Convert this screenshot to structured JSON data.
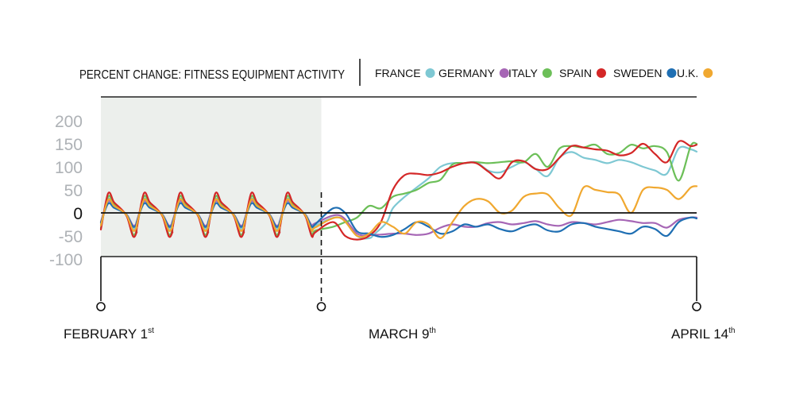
{
  "chart_data": {
    "type": "line",
    "title": "PERCENT CHANGE: FITNESS EQUIPMENT ACTIVITY",
    "ylim": [
      -100,
      200
    ],
    "y_ticks": [
      "200",
      "150",
      "100",
      "50",
      "0",
      "-50",
      "-100"
    ],
    "y_tick_values": [
      200,
      150,
      100,
      50,
      0,
      -50,
      -100
    ],
    "x_start_day": 1,
    "x_end_day": 74,
    "x_markers": [
      {
        "label": "FEBRUARY 1",
        "sup": "st",
        "day": 1
      },
      {
        "label": "MARCH 9",
        "sup": "th",
        "day": 38
      },
      {
        "label": "APRIL 14",
        "sup": "th",
        "day": 74
      }
    ],
    "shaded_range_days": [
      1,
      38
    ],
    "legend_position": "top-right",
    "grid": false,
    "series": [
      {
        "name": "FRANCE",
        "color": "#7ec8d3",
        "phase1": {
          "peak": 30,
          "trough": -40
        },
        "phase2": [
          [
            38,
            20
          ],
          [
            41,
            -10
          ],
          [
            44,
            -50
          ],
          [
            46,
            -55
          ],
          [
            47,
            -45
          ],
          [
            49,
            -20
          ],
          [
            50,
            10
          ],
          [
            52,
            35
          ],
          [
            54,
            55
          ],
          [
            56,
            75
          ],
          [
            58,
            100
          ],
          [
            60,
            108
          ],
          [
            62,
            108
          ],
          [
            64,
            110
          ],
          [
            66,
            92
          ],
          [
            68,
            88
          ],
          [
            70,
            100
          ],
          [
            72,
            110
          ],
          [
            74,
            95
          ],
          [
            76,
            80
          ],
          [
            78,
            120
          ],
          [
            80,
            132
          ],
          [
            82,
            120
          ],
          [
            84,
            115
          ],
          [
            86,
            108
          ],
          [
            88,
            115
          ],
          [
            90,
            110
          ],
          [
            92,
            100
          ],
          [
            94,
            92
          ],
          [
            96,
            85
          ],
          [
            98,
            140
          ],
          [
            100,
            138
          ],
          [
            101,
            133
          ]
        ]
      },
      {
        "name": "GERMANY",
        "color": "#a666b5",
        "phase1": {
          "peak": 25,
          "trough": -32
        },
        "phase2": [
          [
            38,
            10
          ],
          [
            41,
            -5
          ],
          [
            44,
            -45
          ],
          [
            46,
            -48
          ],
          [
            48,
            -47
          ],
          [
            50,
            -45
          ],
          [
            52,
            -45
          ],
          [
            54,
            -48
          ],
          [
            56,
            -45
          ],
          [
            58,
            -32
          ],
          [
            60,
            -25
          ],
          [
            62,
            -30
          ],
          [
            64,
            -30
          ],
          [
            66,
            -22
          ],
          [
            68,
            -20
          ],
          [
            70,
            -25
          ],
          [
            72,
            -22
          ],
          [
            74,
            -18
          ],
          [
            76,
            -25
          ],
          [
            78,
            -28
          ],
          [
            80,
            -20
          ],
          [
            82,
            -22
          ],
          [
            84,
            -25
          ],
          [
            86,
            -20
          ],
          [
            88,
            -15
          ],
          [
            90,
            -18
          ],
          [
            92,
            -22
          ],
          [
            94,
            -22
          ],
          [
            96,
            -32
          ],
          [
            98,
            -15
          ],
          [
            100,
            -10
          ],
          [
            101,
            -10
          ]
        ]
      },
      {
        "name": "ITALY",
        "color": "#6cbf58",
        "phase1": {
          "peak": 35,
          "trough": -55
        },
        "phase2": [
          [
            38,
            35
          ],
          [
            40,
            -30
          ],
          [
            42,
            -20
          ],
          [
            44,
            -10
          ],
          [
            46,
            15
          ],
          [
            48,
            10
          ],
          [
            50,
            35
          ],
          [
            52,
            42
          ],
          [
            54,
            50
          ],
          [
            56,
            65
          ],
          [
            58,
            72
          ],
          [
            60,
            105
          ],
          [
            62,
            108
          ],
          [
            64,
            110
          ],
          [
            66,
            108
          ],
          [
            68,
            110
          ],
          [
            70,
            112
          ],
          [
            72,
            110
          ],
          [
            74,
            128
          ],
          [
            76,
            100
          ],
          [
            78,
            140
          ],
          [
            80,
            145
          ],
          [
            82,
            142
          ],
          [
            84,
            148
          ],
          [
            86,
            128
          ],
          [
            88,
            130
          ],
          [
            90,
            148
          ],
          [
            92,
            140
          ],
          [
            94,
            145
          ],
          [
            96,
            132
          ],
          [
            98,
            70
          ],
          [
            100,
            145
          ],
          [
            101,
            150
          ]
        ]
      },
      {
        "name": "SPAIN",
        "color": "#d42727",
        "phase1": {
          "peak": 42,
          "trough": -60
        },
        "phase2": [
          [
            38,
            30
          ],
          [
            40,
            -20
          ],
          [
            42,
            -50
          ],
          [
            44,
            -58
          ],
          [
            46,
            -50
          ],
          [
            48,
            -20
          ],
          [
            50,
            50
          ],
          [
            52,
            82
          ],
          [
            54,
            85
          ],
          [
            56,
            82
          ],
          [
            58,
            88
          ],
          [
            60,
            100
          ],
          [
            62,
            108
          ],
          [
            64,
            108
          ],
          [
            66,
            90
          ],
          [
            68,
            75
          ],
          [
            70,
            110
          ],
          [
            72,
            112
          ],
          [
            74,
            95
          ],
          [
            76,
            95
          ],
          [
            78,
            120
          ],
          [
            80,
            145
          ],
          [
            82,
            142
          ],
          [
            84,
            138
          ],
          [
            86,
            135
          ],
          [
            88,
            125
          ],
          [
            90,
            130
          ],
          [
            92,
            150
          ],
          [
            94,
            128
          ],
          [
            96,
            110
          ],
          [
            98,
            155
          ],
          [
            100,
            145
          ],
          [
            101,
            148
          ]
        ]
      },
      {
        "name": "SWEDEN",
        "color": "#1f6fb3",
        "phase1": {
          "peak": 20,
          "trough": -35
        },
        "phase2": [
          [
            38,
            15
          ],
          [
            40,
            10
          ],
          [
            42,
            0
          ],
          [
            44,
            -40
          ],
          [
            46,
            -45
          ],
          [
            48,
            -52
          ],
          [
            50,
            -48
          ],
          [
            52,
            -35
          ],
          [
            54,
            -20
          ],
          [
            56,
            -30
          ],
          [
            58,
            -45
          ],
          [
            60,
            -40
          ],
          [
            62,
            -25
          ],
          [
            64,
            -30
          ],
          [
            66,
            -25
          ],
          [
            68,
            -35
          ],
          [
            70,
            -40
          ],
          [
            72,
            -30
          ],
          [
            74,
            -25
          ],
          [
            76,
            -38
          ],
          [
            78,
            -40
          ],
          [
            80,
            -25
          ],
          [
            82,
            -22
          ],
          [
            84,
            -30
          ],
          [
            86,
            -35
          ],
          [
            88,
            -40
          ],
          [
            90,
            -45
          ],
          [
            92,
            -30
          ],
          [
            94,
            -35
          ],
          [
            96,
            -50
          ],
          [
            98,
            -20
          ],
          [
            100,
            -10
          ],
          [
            101,
            -12
          ]
        ]
      },
      {
        "name": "U.K.",
        "color": "#f0a830",
        "phase1": {
          "peak": 28,
          "trough": -45
        },
        "phase2": [
          [
            38,
            20
          ],
          [
            41,
            -10
          ],
          [
            44,
            -50
          ],
          [
            46,
            -45
          ],
          [
            48,
            -20
          ],
          [
            50,
            -30
          ],
          [
            52,
            -45
          ],
          [
            54,
            -20
          ],
          [
            56,
            -25
          ],
          [
            58,
            -55
          ],
          [
            60,
            -20
          ],
          [
            62,
            15
          ],
          [
            64,
            30
          ],
          [
            66,
            25
          ],
          [
            68,
            0
          ],
          [
            70,
            5
          ],
          [
            72,
            35
          ],
          [
            74,
            42
          ],
          [
            76,
            40
          ],
          [
            78,
            10
          ],
          [
            80,
            -5
          ],
          [
            82,
            55
          ],
          [
            84,
            50
          ],
          [
            86,
            45
          ],
          [
            88,
            40
          ],
          [
            90,
            0
          ],
          [
            92,
            50
          ],
          [
            94,
            55
          ],
          [
            96,
            50
          ],
          [
            98,
            30
          ],
          [
            100,
            55
          ],
          [
            101,
            58
          ]
        ]
      }
    ]
  }
}
